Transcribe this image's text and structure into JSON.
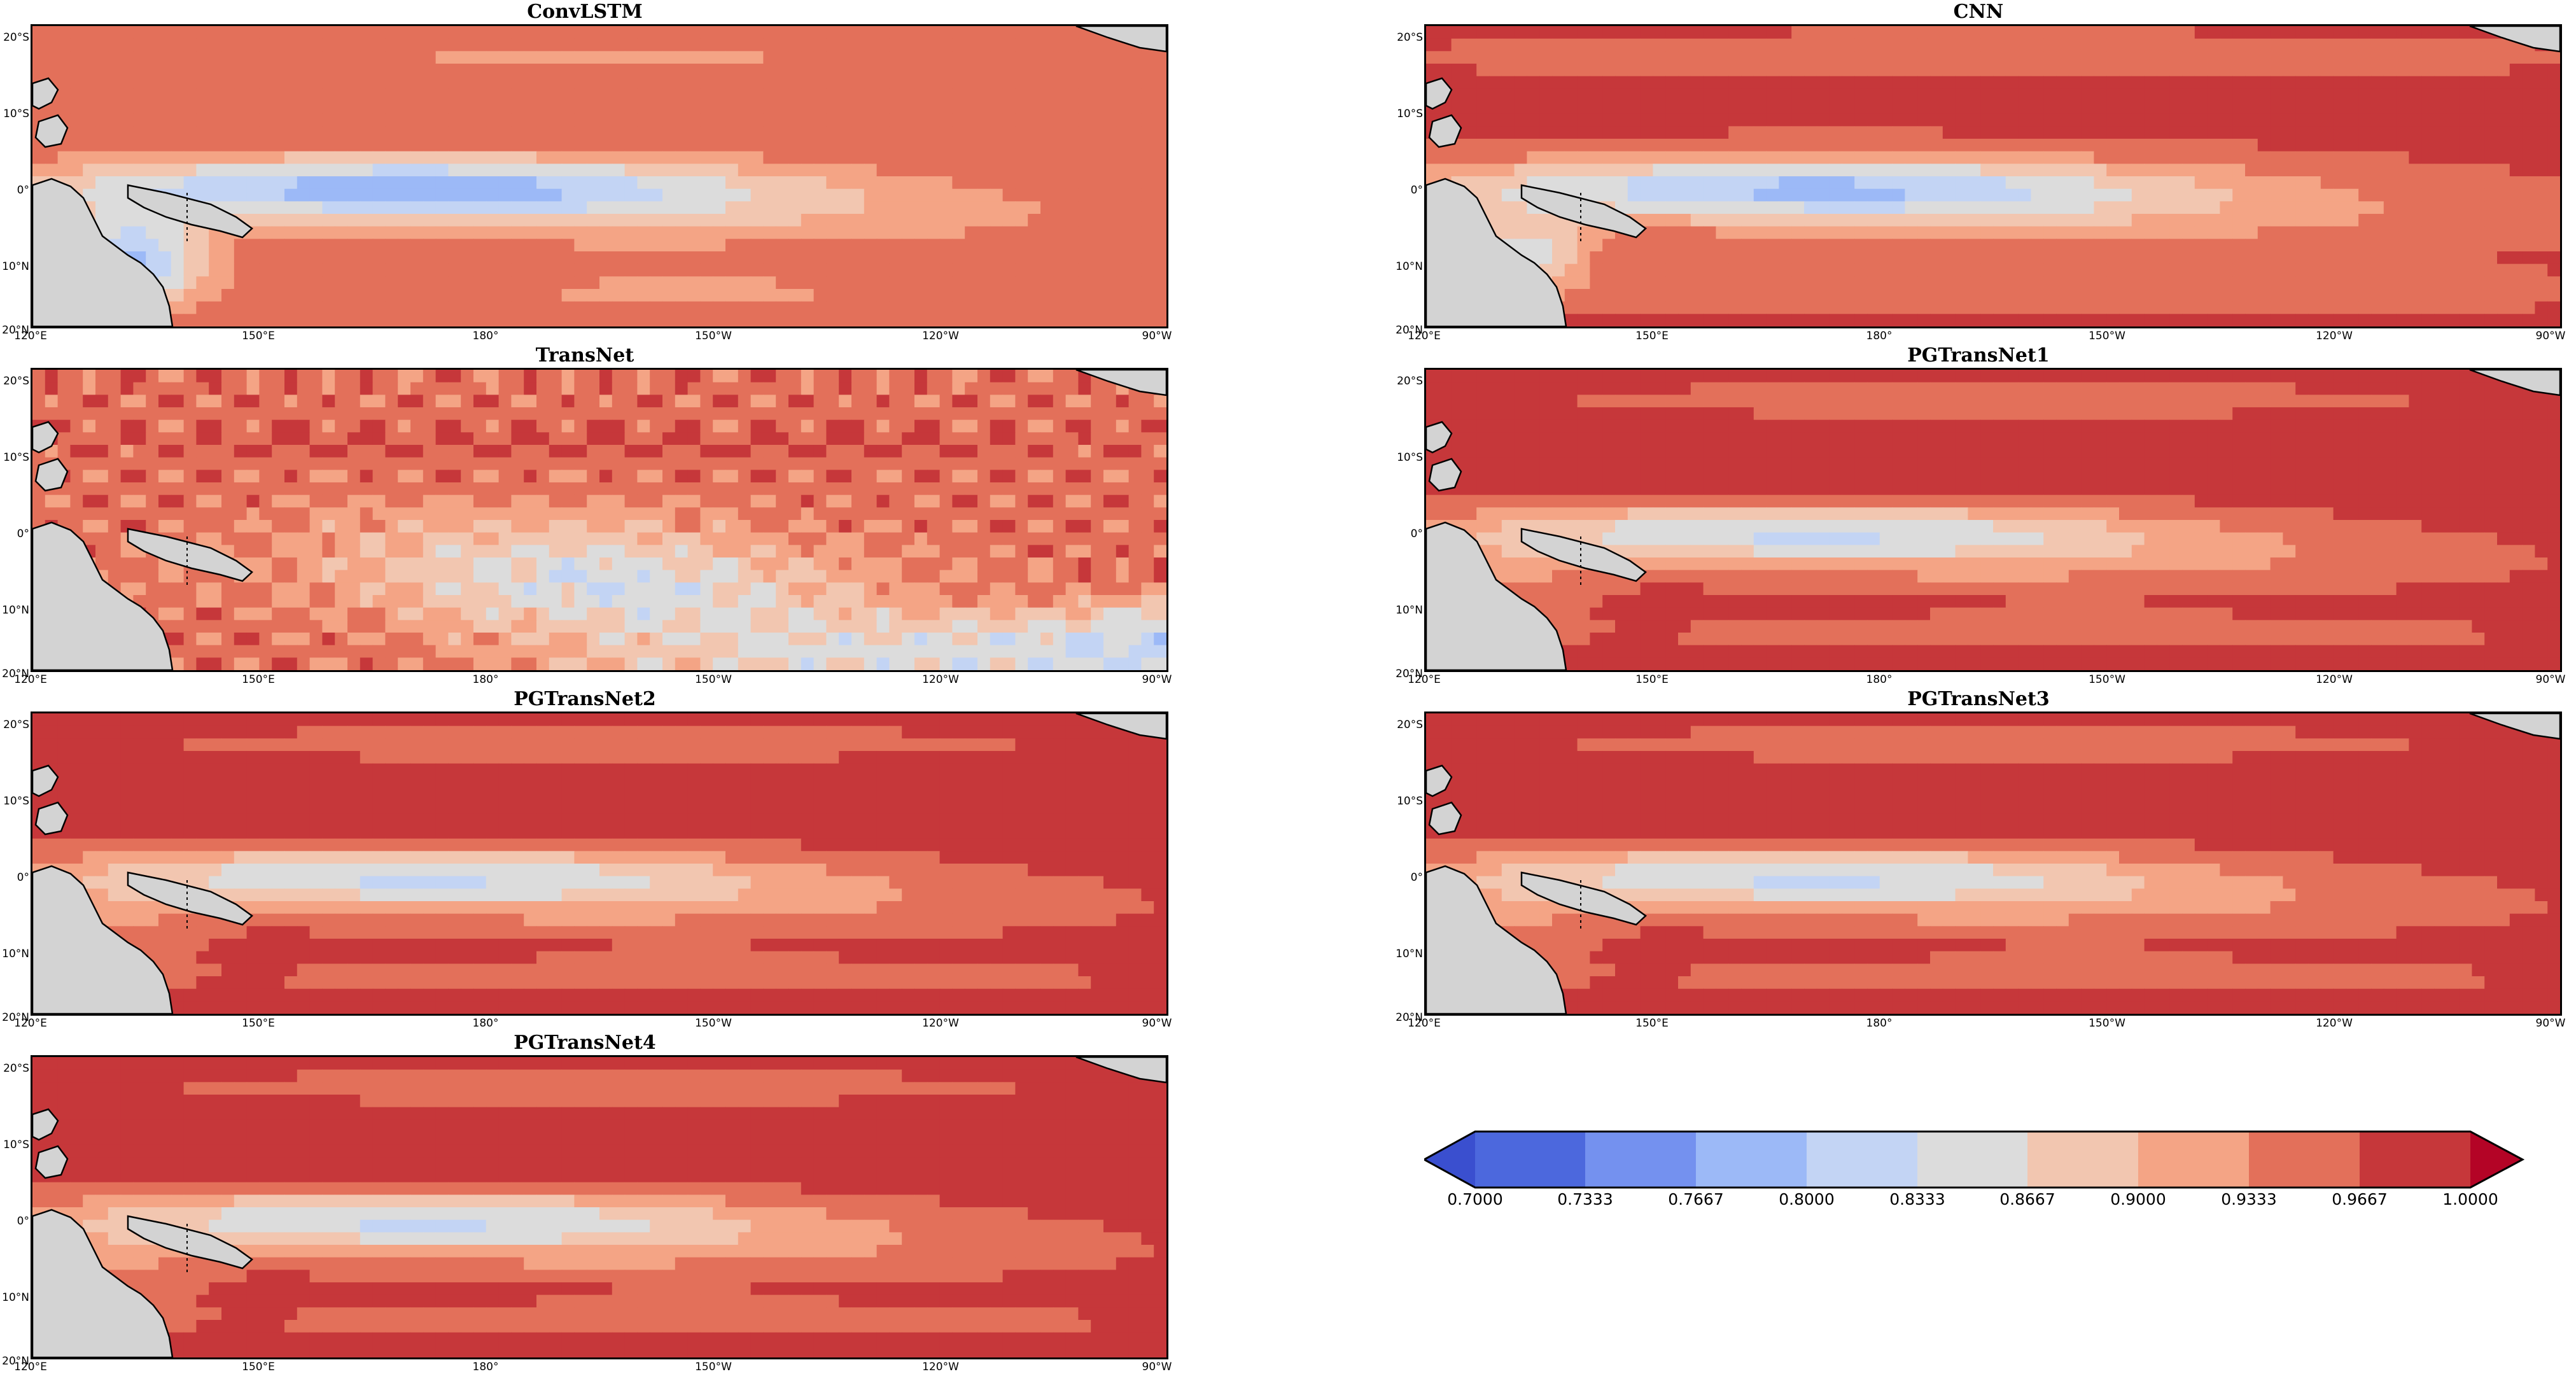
{
  "panels": [
    {
      "title": "ConvLSTM",
      "field": "convlstm"
    },
    {
      "title": "CNN",
      "field": "cnn"
    },
    {
      "title": "TransNet",
      "field": "transnet"
    },
    {
      "title": "PGTransNet1",
      "field": "pg"
    },
    {
      "title": "PGTransNet2",
      "field": "pg"
    },
    {
      "title": "PGTransNet3",
      "field": "pg"
    },
    {
      "title": "PGTransNet4",
      "field": "pg"
    }
  ],
  "lat_labels": [
    "20°S",
    "10°S",
    "0°",
    "10°N",
    "20°N"
  ],
  "lon_labels": [
    "120°E",
    "150°E",
    "180°",
    "150°W",
    "120°W",
    "90°W"
  ],
  "colorbar": {
    "ticks": [
      "0.7000",
      "0.7333",
      "0.7667",
      "0.8000",
      "0.8333",
      "0.8667",
      "0.9000",
      "0.9333",
      "0.9667",
      "1.0000"
    ],
    "colors": [
      "#3a4fcf",
      "#4c68dd",
      "#7491ef",
      "#9cb9f7",
      "#c3d4f4",
      "#dcdcdc",
      "#f2c6b0",
      "#f4a485",
      "#e3705a",
      "#c6373a",
      "#b40426"
    ]
  },
  "colors": {
    "land": "#d3d3d3",
    "coastline": "#000000"
  }
}
